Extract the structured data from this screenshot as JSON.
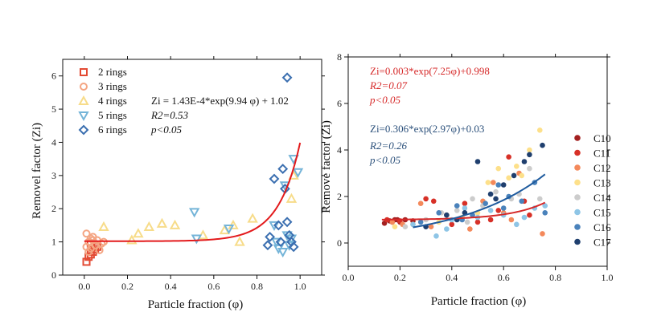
{
  "chart_data": [
    {
      "type": "scatter",
      "xlabel": "Particle fraction (φ)",
      "ylabel": "Removel factor (Zi)",
      "xlim": [
        -0.1,
        1.1
      ],
      "ylim": [
        0,
        6.5
      ],
      "xticks": [
        "0.0",
        "0.2",
        "0.4",
        "0.6",
        "0.8",
        "1.0"
      ],
      "xtick_values": [
        0,
        0.2,
        0.4,
        0.6,
        0.8,
        1.0
      ],
      "yticks": [
        "0",
        "1",
        "2",
        "3",
        "4",
        "5",
        "6"
      ],
      "ytick_values": [
        0,
        1,
        2,
        3,
        4,
        5,
        6
      ],
      "grid": false,
      "legend_position": "top-left",
      "colors": {
        "fit": "#e31a1c",
        "r2": "#e34a33",
        "r3": "#f4a582",
        "r4": "#f7dc8a",
        "r5": "#74b4d8",
        "r6": "#3b6fb0"
      },
      "series": [
        {
          "name": "2 rings",
          "marker": "square",
          "color": "#e34a33",
          "points": [
            [
              0.01,
              0.4
            ],
            [
              0.02,
              0.55
            ],
            [
              0.03,
              0.62
            ],
            [
              0.04,
              0.7
            ],
            [
              0.05,
              0.78
            ],
            [
              0.06,
              0.85
            ],
            [
              0.03,
              0.95
            ],
            [
              0.05,
              0.92
            ]
          ]
        },
        {
          "name": "3 rings",
          "marker": "circle",
          "color": "#f4a582",
          "points": [
            [
              0.01,
              1.25
            ],
            [
              0.02,
              1.0
            ],
            [
              0.03,
              0.8
            ],
            [
              0.04,
              1.15
            ],
            [
              0.05,
              0.9
            ],
            [
              0.06,
              1.05
            ],
            [
              0.07,
              0.75
            ],
            [
              0.02,
              0.7
            ],
            [
              0.04,
              1.05
            ],
            [
              0.08,
              0.95
            ],
            [
              0.01,
              0.85
            ],
            [
              0.09,
              1.0
            ],
            [
              0.03,
              1.1
            ]
          ]
        },
        {
          "name": "4 rings",
          "marker": "triangle-up",
          "color": "#f7dc8a",
          "points": [
            [
              0.09,
              1.45
            ],
            [
              0.22,
              1.05
            ],
            [
              0.25,
              1.25
            ],
            [
              0.3,
              1.45
            ],
            [
              0.36,
              1.55
            ],
            [
              0.42,
              1.5
            ],
            [
              0.55,
              1.2
            ],
            [
              0.65,
              1.35
            ],
            [
              0.69,
              1.5
            ],
            [
              0.72,
              1.0
            ],
            [
              0.78,
              1.7
            ],
            [
              0.96,
              2.3
            ],
            [
              0.97,
              3.0
            ]
          ]
        },
        {
          "name": "5 rings",
          "marker": "triangle-down",
          "color": "#74b4d8",
          "points": [
            [
              0.51,
              1.9
            ],
            [
              0.52,
              1.1
            ],
            [
              0.67,
              1.4
            ],
            [
              0.88,
              1.5
            ],
            [
              0.89,
              1.0
            ],
            [
              0.9,
              0.8
            ],
            [
              0.92,
              0.7
            ],
            [
              0.94,
              1.2
            ],
            [
              0.95,
              0.9
            ],
            [
              0.96,
              1.1
            ],
            [
              0.97,
              3.5
            ],
            [
              0.99,
              3.1
            ],
            [
              0.93,
              2.7
            ]
          ]
        },
        {
          "name": "6 rings",
          "marker": "diamond",
          "color": "#3b6fb0",
          "points": [
            [
              0.85,
              0.9
            ],
            [
              0.86,
              1.15
            ],
            [
              0.88,
              2.9
            ],
            [
              0.9,
              1.5
            ],
            [
              0.92,
              3.2
            ],
            [
              0.93,
              2.6
            ],
            [
              0.94,
              1.6
            ],
            [
              0.95,
              1.2
            ],
            [
              0.96,
              1.0
            ],
            [
              0.97,
              0.85
            ],
            [
              0.94,
              5.95
            ],
            [
              0.91,
              1.0
            ]
          ]
        }
      ],
      "fit": {
        "a": 0.000143,
        "b": 9.94,
        "c": 1.02,
        "x_range": [
          0,
          1.0
        ]
      },
      "annotations": [
        "Zi = 1.43E-4*exp(9.94 φ) + 1.02",
        "R2=0.53",
        "p<0.05"
      ]
    },
    {
      "type": "scatter",
      "xlabel": "Particle fraction (φ)",
      "ylabel": "Remove factor (Zi)",
      "xlim": [
        0.0,
        1.0
      ],
      "ylim": [
        -1,
        8
      ],
      "xticks": [
        "0.0",
        "0.2",
        "0.4",
        "0.6",
        "0.8",
        "1.0"
      ],
      "xtick_values": [
        0,
        0.2,
        0.4,
        0.6,
        0.8,
        1.0
      ],
      "yticks": [
        "0",
        "2",
        "4",
        "6",
        "8"
      ],
      "ytick_values": [
        0,
        2,
        4,
        6,
        8
      ],
      "grid": false,
      "legend_position": "right",
      "series": [
        {
          "name": "C10",
          "color": "#a32020",
          "points": [
            [
              0.14,
              0.85
            ],
            [
              0.16,
              0.95
            ],
            [
              0.18,
              1.0
            ],
            [
              0.2,
              0.9
            ],
            [
              0.22,
              1.0
            ],
            [
              0.25,
              0.95
            ],
            [
              0.17,
              0.9
            ],
            [
              0.19,
              1.0
            ]
          ]
        },
        {
          "name": "C11",
          "color": "#d73027",
          "points": [
            [
              0.15,
              1.0
            ],
            [
              0.2,
              0.95
            ],
            [
              0.3,
              1.9
            ],
            [
              0.33,
              1.8
            ],
            [
              0.45,
              1.7
            ],
            [
              0.5,
              0.9
            ],
            [
              0.55,
              1.0
            ],
            [
              0.62,
              3.7
            ],
            [
              0.68,
              1.8
            ],
            [
              0.4,
              0.8
            ],
            [
              0.58,
              1.4
            ],
            [
              0.7,
              1.2
            ]
          ]
        },
        {
          "name": "C12",
          "color": "#f4895b",
          "points": [
            [
              0.17,
              0.9
            ],
            [
              0.21,
              0.8
            ],
            [
              0.28,
              1.7
            ],
            [
              0.32,
              0.7
            ],
            [
              0.38,
              1.2
            ],
            [
              0.47,
              0.6
            ],
            [
              0.52,
              1.8
            ],
            [
              0.56,
              2.6
            ],
            [
              0.6,
              1.3
            ],
            [
              0.66,
              3.0
            ],
            [
              0.75,
              0.4
            ],
            [
              0.63,
              1.0
            ]
          ]
        },
        {
          "name": "C13",
          "color": "#fde08a",
          "points": [
            [
              0.18,
              0.7
            ],
            [
              0.25,
              0.8
            ],
            [
              0.35,
              0.9
            ],
            [
              0.44,
              1.1
            ],
            [
              0.5,
              1.3
            ],
            [
              0.54,
              2.6
            ],
            [
              0.58,
              3.2
            ],
            [
              0.62,
              2.8
            ],
            [
              0.65,
              3.3
            ],
            [
              0.7,
              4.0
            ],
            [
              0.74,
              4.85
            ],
            [
              0.67,
              2.9
            ]
          ]
        },
        {
          "name": "C14",
          "color": "#cccccc",
          "points": [
            [
              0.22,
              0.7
            ],
            [
              0.3,
              1.0
            ],
            [
              0.36,
              1.3
            ],
            [
              0.42,
              1.4
            ],
            [
              0.48,
              1.9
            ],
            [
              0.52,
              1.6
            ],
            [
              0.57,
              2.2
            ],
            [
              0.63,
              1.9
            ],
            [
              0.7,
              3.2
            ],
            [
              0.74,
              1.9
            ],
            [
              0.46,
              0.9
            ],
            [
              0.66,
              2.1
            ]
          ]
        },
        {
          "name": "C15",
          "color": "#8ec5e6",
          "points": [
            [
              0.25,
              0.8
            ],
            [
              0.34,
              0.3
            ],
            [
              0.4,
              1.0
            ],
            [
              0.45,
              1.5
            ],
            [
              0.5,
              1.1
            ],
            [
              0.55,
              1.4
            ],
            [
              0.6,
              1.2
            ],
            [
              0.65,
              0.8
            ],
            [
              0.72,
              1.5
            ],
            [
              0.76,
              1.6
            ],
            [
              0.38,
              0.6
            ],
            [
              0.68,
              1.1
            ]
          ]
        },
        {
          "name": "C16",
          "color": "#4a82bb",
          "points": [
            [
              0.28,
              0.9
            ],
            [
              0.35,
              1.3
            ],
            [
              0.42,
              1.6
            ],
            [
              0.48,
              1.2
            ],
            [
              0.53,
              1.7
            ],
            [
              0.58,
              2.5
            ],
            [
              0.62,
              2.0
            ],
            [
              0.67,
              1.8
            ],
            [
              0.72,
              2.6
            ],
            [
              0.76,
              1.3
            ],
            [
              0.44,
              1.0
            ],
            [
              0.6,
              1.5
            ]
          ]
        },
        {
          "name": "C17",
          "color": "#1f3f6e",
          "points": [
            [
              0.3,
              0.7
            ],
            [
              0.38,
              1.2
            ],
            [
              0.45,
              1.3
            ],
            [
              0.5,
              3.5
            ],
            [
              0.55,
              2.1
            ],
            [
              0.6,
              2.5
            ],
            [
              0.64,
              2.9
            ],
            [
              0.68,
              3.5
            ],
            [
              0.7,
              3.8
            ],
            [
              0.75,
              4.2
            ],
            [
              0.42,
              1.0
            ],
            [
              0.57,
              1.9
            ]
          ]
        }
      ],
      "fits": [
        {
          "a": 0.003,
          "b": 7.25,
          "c": 0.998,
          "x_range": [
            0.13,
            0.76
          ],
          "color": "#d62828"
        },
        {
          "a": 0.306,
          "b": 2.97,
          "c": 0.03,
          "x_range": [
            0.25,
            0.76
          ],
          "color": "#1f5b9e"
        }
      ],
      "annotations": {
        "red": [
          "Zi=0.003*exp(7.25φ)+0.998",
          "R2=0.07",
          "p<0.05"
        ],
        "blue": [
          "Zi=0.306*exp(2.97φ)+0.03",
          "R2=0.26",
          "p<0.05"
        ]
      }
    }
  ]
}
